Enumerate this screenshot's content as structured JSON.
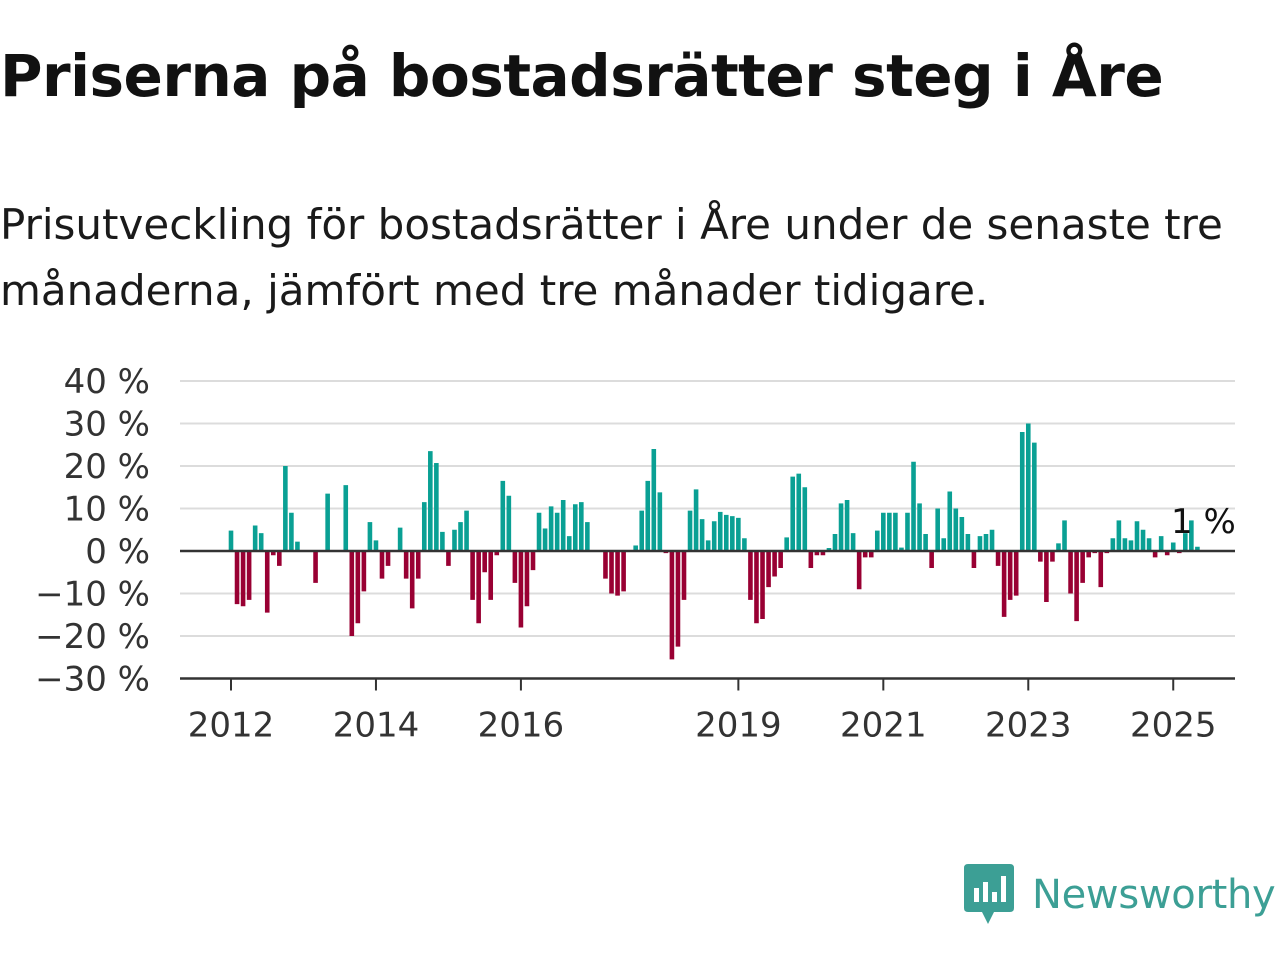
{
  "title": "Priserna på bostadsrätter steg i Åre",
  "subtitle": "Prisutveckling för bostadsrätter i Åre under de senaste tre månaderna, jämfört med tre månader tidigare.",
  "brand": {
    "name": "Newsworthy",
    "icon": "newsworthy-logo-icon",
    "color": "#3c9f95"
  },
  "colors": {
    "positive": "#0aa094",
    "negative": "#990033",
    "grid": "#dcdcdc",
    "axis": "#333333",
    "text": "#333333"
  },
  "chart_data": {
    "type": "bar",
    "title": "Priserna på bostadsrätter steg i Åre",
    "x_start": "2012-01",
    "x_end": "2025-06",
    "x_ticks": [
      "2012",
      "2014",
      "2016",
      "2019",
      "2021",
      "2023",
      "2025"
    ],
    "y_ticks": [
      "40 %",
      "30 %",
      "20 %",
      "10 %",
      "0 %",
      "−10 %",
      "−20 %",
      "−30 %"
    ],
    "ylim": [
      -30,
      40
    ],
    "grid": true,
    "legend": "none",
    "last_value_label": "1 %",
    "values": [
      4.8,
      -12.5,
      -13,
      -11.5,
      6,
      4.2,
      -14.5,
      -1,
      -3.5,
      20,
      9,
      2.2,
      0,
      0,
      -7.5,
      0,
      13.5,
      0,
      0,
      15.5,
      -20,
      -17,
      -9.5,
      6.8,
      2.5,
      -6.5,
      -3.5,
      0,
      5.5,
      -6.5,
      -13.5,
      -6.5,
      11.5,
      23.5,
      20.7,
      4.5,
      -3.5,
      5,
      6.8,
      9.5,
      -11.5,
      -17,
      -5,
      -11.5,
      -1,
      16.5,
      13,
      -7.5,
      -18,
      -13,
      -4.5,
      9,
      5.3,
      10.5,
      9,
      12,
      3.5,
      11,
      11.5,
      6.8,
      0,
      0,
      -6.5,
      -10,
      -10.5,
      -9.5,
      0,
      1.3,
      9.5,
      16.5,
      24,
      13.8,
      -0.5,
      -25.5,
      -22.5,
      -11.5,
      9.5,
      14.5,
      7.5,
      2.5,
      7,
      9.2,
      8.5,
      8.2,
      7.8,
      3,
      -11.5,
      -17,
      -16,
      -8.5,
      -6,
      -4,
      3.2,
      17.5,
      18.2,
      15,
      -4,
      -1,
      -1,
      0.7,
      4,
      11.2,
      12,
      4.2,
      -9,
      -1.5,
      -1.5,
      4.8,
      9,
      9,
      9,
      0.8,
      9,
      21,
      11.2,
      4,
      -4,
      10,
      3,
      14,
      10,
      8,
      4,
      -4,
      3.5,
      4,
      5,
      -3.5,
      -15.5,
      -11.5,
      -10.5,
      28,
      30,
      25.5,
      -2.5,
      -12,
      -2.5,
      1.8,
      7.2,
      -10,
      -16.5,
      -7.5,
      -1.5,
      -0.5,
      -8.5,
      -0.5,
      3,
      7.2,
      3,
      2.5,
      7,
      5,
      3,
      -1.5,
      3.5,
      -1,
      2,
      -0.5,
      4.2,
      7.2,
      1
    ]
  }
}
